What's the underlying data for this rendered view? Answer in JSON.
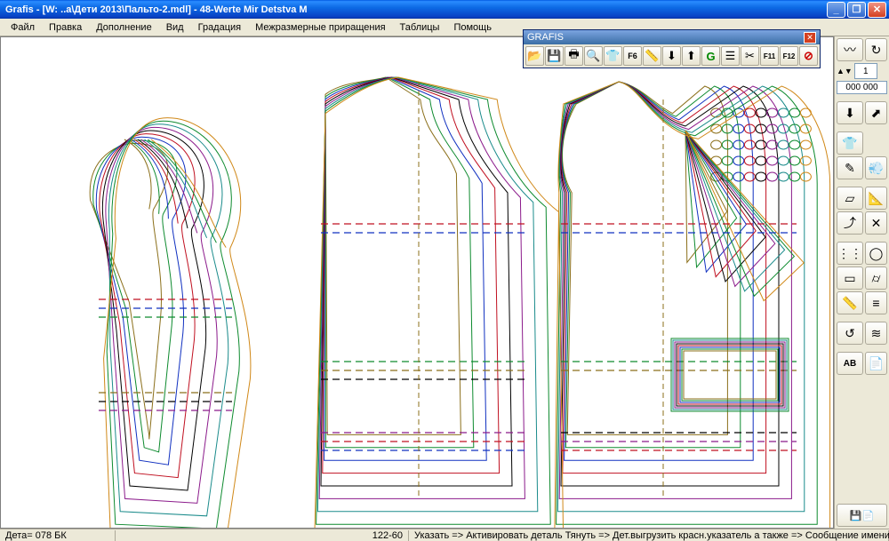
{
  "title": "Grafis - [W: ..а\\Дети 2013\\Пальто-2.mdl] - 48-Werte Mir Detstva M",
  "menu": [
    "Файл",
    "Правка",
    "Дополнение",
    "Вид",
    "Градация",
    "Межразмерные приращения",
    "Таблицы",
    "Помощь"
  ],
  "float_toolbar": {
    "title": "GRAFIS",
    "buttons": [
      "open",
      "save",
      "print",
      "zoom",
      "shirt",
      "f6",
      "measure",
      "arrow-down",
      "arrow-up",
      "g",
      "layers",
      "cut",
      "f11",
      "f12",
      "stop"
    ]
  },
  "right_tools": {
    "page_input": "1",
    "size_display": "000 000",
    "groups": [
      [
        "curve",
        "redo"
      ],
      [
        "arrow-down",
        "arrow-up-right"
      ],
      [
        "edit",
        "spray"
      ],
      [
        "sheet",
        "ruler-diag",
        "curve-pt",
        "cross"
      ],
      [
        "dots",
        "circle-measure",
        "rect",
        "cylinder",
        "ruler-v",
        "bars"
      ],
      [
        "move-curve",
        "dashes"
      ],
      [
        "ab-text",
        "doc-open"
      ]
    ]
  },
  "status": {
    "left": "Дета= 078  БК",
    "center": "122-60",
    "right": "Указать => Активировать деталь Тянуть => Дет.выгрузить красн.указатель а также => Сообщение имени детали и размера"
  },
  "colors": {
    "c1": "#8b6f1a",
    "c2": "#0d8a2e",
    "c3": "#1030c0",
    "c4": "#c01020",
    "c5": "#000000",
    "c6": "#8b1a8b",
    "c7": "#1a8b8b",
    "c8": "#d08818"
  }
}
